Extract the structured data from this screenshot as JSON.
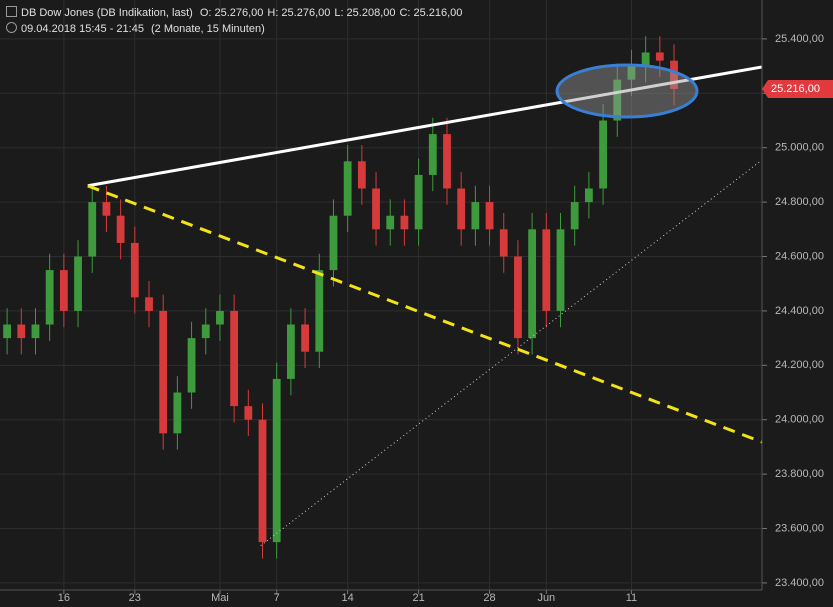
{
  "header": {
    "instrument": "DB Dow Jones (DB Indikation, last)",
    "ohlc": [
      {
        "key": "O:",
        "value": 25276,
        "label": "25.276,00"
      },
      {
        "key": "H:",
        "value": 25276,
        "label": "25.276,00"
      },
      {
        "key": "L:",
        "value": 25208,
        "label": "25.208,00"
      },
      {
        "key": "C:",
        "value": 25216,
        "label": "25.216,00"
      }
    ],
    "period": "09.04.2018 15:45 - 21:45",
    "range": "(2 Monate, 15 Minuten)"
  },
  "chart_data": {
    "type": "candlestick",
    "x": [
      1,
      2,
      3,
      4,
      5,
      6,
      7,
      8,
      9,
      10,
      11,
      12,
      13,
      14,
      15,
      16,
      17,
      18,
      19,
      20,
      21,
      22,
      23,
      24,
      25,
      26,
      27,
      28,
      29,
      30,
      31,
      32,
      33,
      34,
      35,
      36,
      37,
      38,
      39,
      40,
      41,
      42,
      43,
      44,
      45,
      46,
      47,
      48
    ],
    "open": [
      24300,
      24350,
      24300,
      24350,
      24550,
      24400,
      24600,
      24800,
      24750,
      24650,
      24450,
      24400,
      23950,
      24100,
      24300,
      24350,
      24400,
      24050,
      24000,
      23550,
      24150,
      24350,
      24250,
      24550,
      24750,
      24950,
      24850,
      24700,
      24750,
      24700,
      24900,
      25050,
      24850,
      24700,
      24800,
      24700,
      24600,
      24300,
      24700,
      24400,
      24700,
      24800,
      24850,
      25100,
      25250,
      25300,
      25350,
      25320
    ],
    "high": [
      24410,
      24410,
      24410,
      24610,
      24610,
      24660,
      24860,
      24860,
      24810,
      24710,
      24510,
      24460,
      24160,
      24360,
      24410,
      24460,
      24460,
      24110,
      24060,
      24210,
      24410,
      24410,
      24610,
      24810,
      25010,
      25010,
      24910,
      24810,
      24810,
      24960,
      25110,
      25110,
      24910,
      24860,
      24860,
      24760,
      24660,
      24760,
      24760,
      24760,
      24860,
      24910,
      25160,
      25310,
      25360,
      25410,
      25410,
      25380
    ],
    "low": [
      24240,
      24240,
      24240,
      24290,
      24340,
      24340,
      24540,
      24690,
      24590,
      24390,
      24340,
      23890,
      23890,
      24040,
      24240,
      24290,
      23990,
      23940,
      23490,
      23490,
      24090,
      24190,
      24190,
      24490,
      24690,
      24790,
      24640,
      24640,
      24640,
      24640,
      24840,
      24790,
      24640,
      24640,
      24640,
      24540,
      24240,
      24240,
      24340,
      24340,
      24640,
      24740,
      24790,
      25040,
      25190,
      25240,
      25260,
      25156
    ],
    "close": [
      24350,
      24300,
      24350,
      24550,
      24400,
      24600,
      24800,
      24750,
      24650,
      24450,
      24400,
      23950,
      24100,
      24300,
      24350,
      24400,
      24050,
      24000,
      23550,
      24150,
      24350,
      24250,
      24550,
      24750,
      24950,
      24850,
      24700,
      24750,
      24700,
      24900,
      25050,
      24850,
      24700,
      24800,
      24700,
      24600,
      24300,
      24700,
      24400,
      24700,
      24800,
      24850,
      25100,
      25250,
      25300,
      25350,
      25320,
      25216
    ],
    "up_color": "#3d9b3d",
    "down_color": "#d63a3a",
    "xlim": [
      0.5,
      54.2
    ],
    "ylim": [
      23374,
      25543
    ],
    "xticks": [
      {
        "value": 5,
        "label": "16"
      },
      {
        "value": 10,
        "label": "23"
      },
      {
        "value": 16,
        "label": "Mai"
      },
      {
        "value": 20,
        "label": "7"
      },
      {
        "value": 25,
        "label": "14"
      },
      {
        "value": 30,
        "label": "21"
      },
      {
        "value": 35,
        "label": "28"
      },
      {
        "value": 39,
        "label": "Jun"
      },
      {
        "value": 45,
        "label": "11"
      }
    ],
    "yticks": [
      {
        "value": 23400,
        "label": "23.400,00"
      },
      {
        "value": 23600,
        "label": "23.600,00"
      },
      {
        "value": 23800,
        "label": "23.800,00"
      },
      {
        "value": 24000,
        "label": "24.000,00"
      },
      {
        "value": 24200,
        "label": "24.200,00"
      },
      {
        "value": 24400,
        "label": "24.400,00"
      },
      {
        "value": 24600,
        "label": "24.600,00"
      },
      {
        "value": 24800,
        "label": "24.800,00"
      },
      {
        "value": 25000,
        "label": "25.000,00"
      },
      {
        "value": 25200,
        "label": "25.200,00"
      },
      {
        "value": 25400,
        "label": "25.400,00"
      }
    ],
    "grid": true,
    "last": {
      "value": 25216,
      "label": "25.216,00",
      "color": "#e0393e"
    },
    "trendlines": [
      {
        "x": [
          6.69,
          54.2
        ],
        "y": [
          24860,
          25297
        ],
        "color": "#ffffff",
        "style": "solid"
      },
      {
        "x": [
          6.69,
          54.2
        ],
        "y": [
          24860,
          23918
        ],
        "color": "#f2e318",
        "style": "dashed"
      },
      {
        "x": [
          18.87,
          54.2
        ],
        "y": [
          23537,
          24955
        ],
        "color": "#cccccc",
        "style": "dotted"
      }
    ]
  }
}
